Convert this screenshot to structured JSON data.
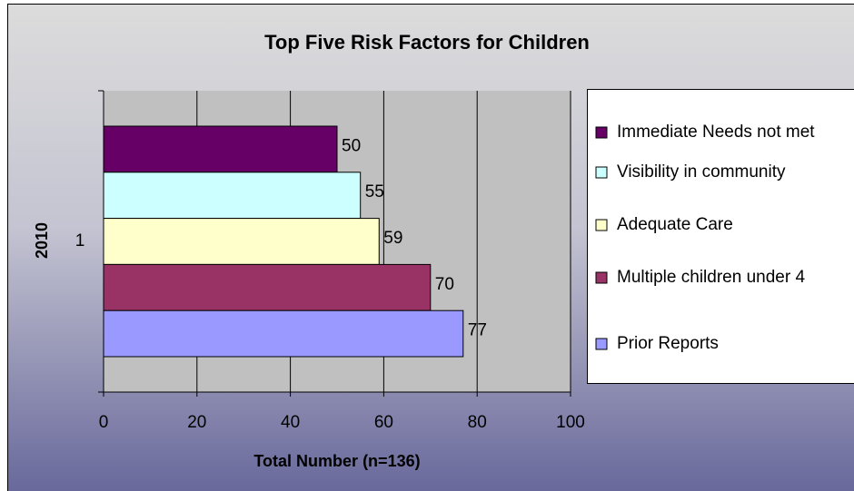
{
  "chart_data": {
    "type": "bar",
    "orientation": "horizontal",
    "title": "Top Five Risk Factors for Children",
    "x_label": "Total Number (n=136)",
    "y_label": "2010",
    "categories": [
      "1"
    ],
    "series": [
      {
        "name": "Immediate Needs not met",
        "color": "#660066",
        "values": [
          50
        ]
      },
      {
        "name": "Visibility in community",
        "color": "#ccffff",
        "values": [
          55
        ]
      },
      {
        "name": "Adequate Care",
        "color": "#ffffcc",
        "values": [
          59
        ]
      },
      {
        "name": "Multiple children under 4",
        "color": "#993366",
        "values": [
          70
        ]
      },
      {
        "name": "Prior Reports",
        "color": "#9999ff",
        "values": [
          77
        ]
      }
    ],
    "xlim": [
      0,
      100
    ],
    "xticks": [
      0,
      20,
      40,
      60,
      80,
      100
    ],
    "grid": true,
    "legend": "right"
  }
}
